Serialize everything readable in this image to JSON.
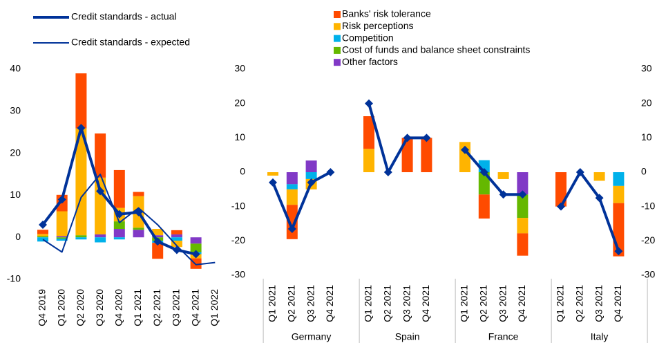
{
  "chart_data": [
    {
      "type": "bar",
      "categories": [
        "Q4 2019",
        "Q1 2020",
        "Q2 2020",
        "Q3 2020",
        "Q4 2020",
        "Q1 2021",
        "Q2 2021",
        "Q3 2021",
        "Q4 2021",
        "Q1 2022"
      ],
      "ylim": [
        -10,
        40
      ],
      "yticks": [
        -10,
        0,
        10,
        20,
        30,
        40
      ],
      "series": [
        {
          "color": "#ff4b00",
          "values": [
            1.0,
            3.9,
            13.1,
            10.5,
            9.0,
            1.0,
            -3.8,
            1.0,
            -2.5,
            0
          ]
        },
        {
          "color": "#ffb400",
          "values": [
            0.5,
            5.9,
            25.4,
            13.5,
            3.2,
            7.5,
            1.5,
            -1.5,
            -1.0,
            0
          ]
        },
        {
          "color": "#00b1ea",
          "values": [
            -1.0,
            -0.5,
            -0.5,
            -1.2,
            -0.5,
            0,
            -0.5,
            -0.8,
            -0.5,
            0
          ]
        },
        {
          "color": "#65b800",
          "values": [
            0.3,
            -0.3,
            0.5,
            0,
            1.8,
            0.5,
            -0.8,
            0,
            -2.0,
            0
          ]
        },
        {
          "color": "#8139c6",
          "values": [
            0,
            0.3,
            0,
            0.7,
            2.0,
            1.8,
            0.5,
            0.7,
            -1.5,
            0
          ]
        },
        {
          "name": "Credit standards - actual",
          "type": "line",
          "color": "#003299",
          "width": 4,
          "markers": true,
          "values": [
            3,
            9,
            26,
            11,
            5.5,
            6,
            -1,
            -3,
            -4,
            null
          ]
        },
        {
          "name": "Credit standards - expected",
          "type": "line",
          "color": "#003299",
          "width": 2,
          "markers": false,
          "values": [
            -0.5,
            -3.5,
            9.5,
            15,
            3.5,
            7,
            3,
            -2,
            -6.5,
            -6
          ]
        }
      ]
    },
    {
      "type": "bar",
      "categories": [
        "Q1 2021",
        "Q2 2021",
        "Q3 2021",
        "Q4 2021",
        "Q1 2021",
        "Q2 2021",
        "Q3 2021",
        "Q4 2021",
        "Q1 2021",
        "Q2 2021",
        "Q3 2021",
        "Q4 2021",
        "Q1 2021",
        "Q2 2021",
        "Q3 2021",
        "Q4 2021"
      ],
      "groups": [
        "Germany",
        "Spain",
        "France",
        "Italy"
      ],
      "ylim": [
        -30,
        30
      ],
      "yticks": [
        -30,
        -20,
        -10,
        0,
        10,
        20,
        30
      ],
      "y2lim": [
        -30,
        30
      ],
      "y2ticks": [
        -30,
        -20,
        -10,
        0,
        10,
        20,
        30
      ],
      "series": [
        {
          "name": "Banks' risk tolerance",
          "color": "#ff4b00",
          "values": [
            0,
            -10,
            0,
            0,
            9.5,
            0,
            10,
            10,
            0,
            -7,
            0,
            -6.5,
            -10,
            0,
            0,
            -15.5
          ]
        },
        {
          "name": "Risk perceptions",
          "color": "#ffb400",
          "values": [
            -1,
            -4.5,
            -3,
            0,
            6.8,
            0,
            0,
            0,
            8.8,
            0,
            -2,
            -4.5,
            0,
            0,
            -2.5,
            -5
          ]
        },
        {
          "name": "Competition",
          "color": "#00b1ea",
          "values": [
            0,
            -1.5,
            -2,
            0,
            0,
            0,
            0,
            0,
            0,
            3.5,
            0,
            0,
            0,
            0,
            0,
            -4
          ]
        },
        {
          "name": "Cost of funds and balance sheet constraints",
          "color": "#65b800",
          "values": [
            0,
            0,
            0,
            0,
            0,
            0,
            0,
            0,
            0,
            -6.5,
            0,
            -6.8,
            0,
            0,
            0,
            0
          ]
        },
        {
          "name": "Other factors",
          "color": "#8139c6",
          "values": [
            0,
            -3.5,
            3.4,
            0,
            0,
            0,
            0,
            0,
            0,
            0,
            0,
            -6.5,
            0,
            0,
            0,
            0
          ]
        },
        {
          "type": "line",
          "color": "#003299",
          "width": 4,
          "markers": true,
          "values": [
            -3,
            -16.5,
            -3,
            0,
            20,
            0,
            10,
            10,
            6.5,
            0,
            -6.5,
            -6.5,
            -10,
            0,
            -7.5,
            -23
          ]
        }
      ]
    }
  ]
}
